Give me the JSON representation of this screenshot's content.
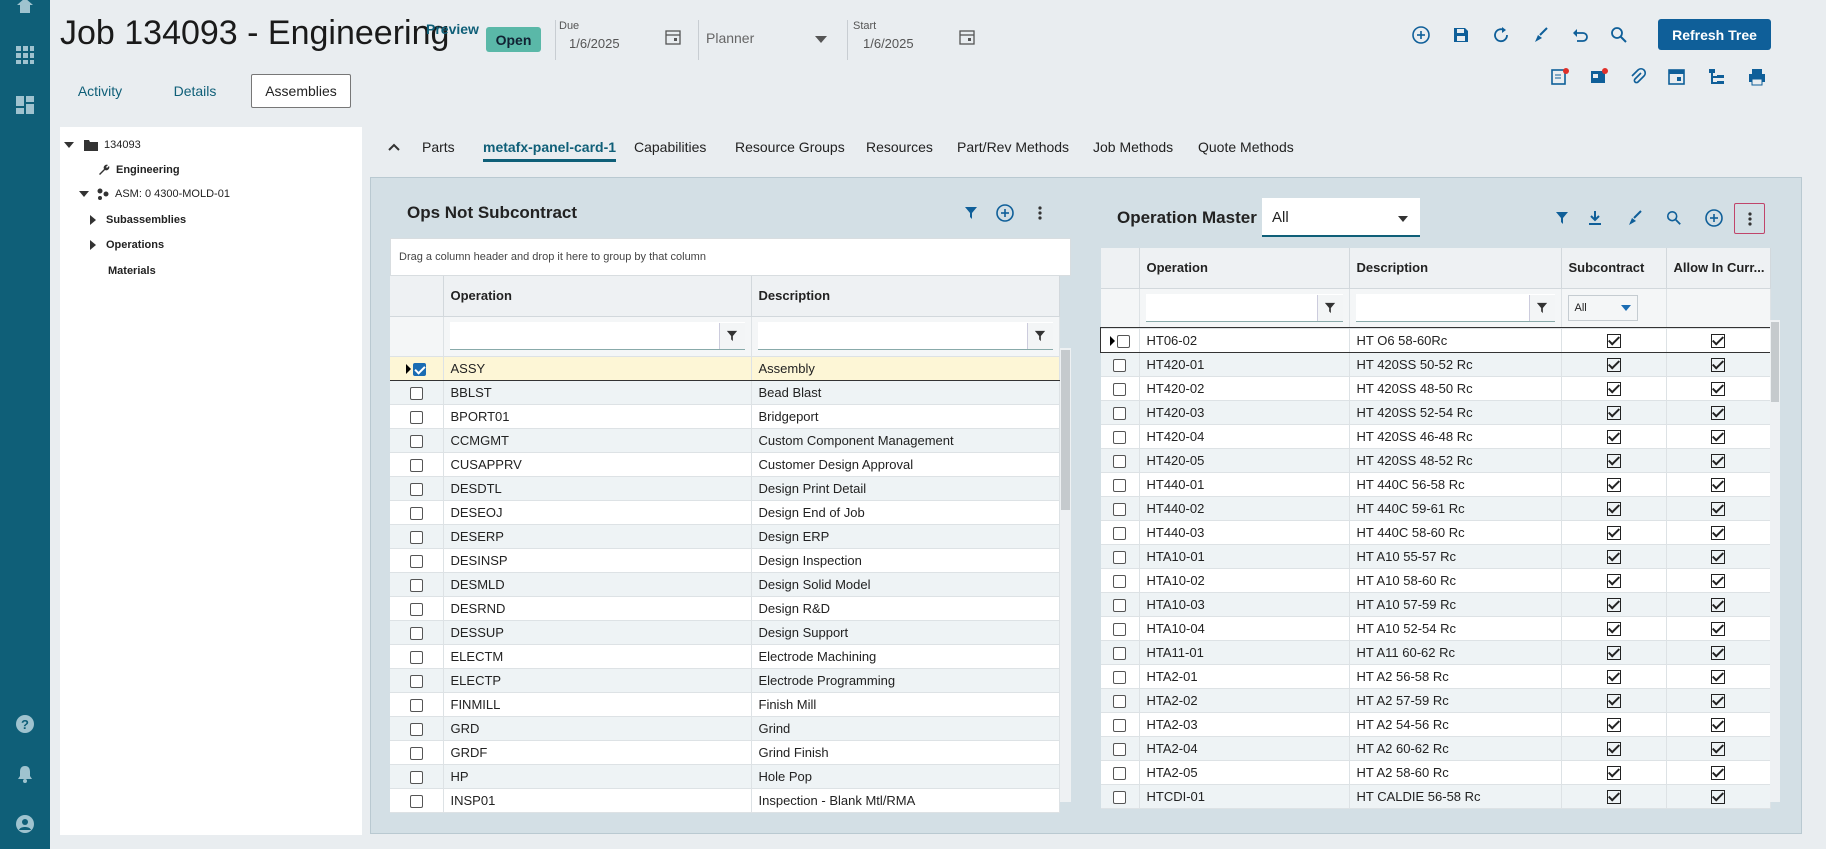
{
  "header": {
    "job_title": "Job 134093 - Engineering",
    "preview_label": "Preview",
    "status": "Open",
    "due_label": "Due",
    "due_value": "1/6/2025",
    "planner_placeholder": "Planner",
    "start_label": "Start",
    "start_value": "1/6/2025",
    "refresh_tree_label": "Refresh Tree"
  },
  "page_tabs": [
    "Activity",
    "Details",
    "Assemblies"
  ],
  "tree": {
    "root": "134093",
    "engineering": "Engineering",
    "assembly": "ASM: 0 4300-MOLD-01",
    "subassemblies": "Subassemblies",
    "operations": "Operations",
    "materials": "Materials"
  },
  "sub_tabs": [
    "Parts",
    "metafx-panel-card-1",
    "Capabilities",
    "Resource Groups",
    "Resources",
    "Part/Rev Methods",
    "Job Methods",
    "Quote Methods"
  ],
  "left_grid": {
    "title": "Ops Not Subcontract",
    "group_hint": "Drag a column header and drop it here to group by that column",
    "columns": [
      "Operation",
      "Description"
    ],
    "rows": [
      {
        "op": "ASSY",
        "desc": "Assembly",
        "checked": true
      },
      {
        "op": "BBLST",
        "desc": "Bead Blast",
        "checked": false
      },
      {
        "op": "BPORT01",
        "desc": "Bridgeport",
        "checked": false
      },
      {
        "op": "CCMGMT",
        "desc": "Custom Component Management",
        "checked": false
      },
      {
        "op": "CUSAPPRV",
        "desc": "Customer Design Approval",
        "checked": false
      },
      {
        "op": "DESDTL",
        "desc": "Design Print Detail",
        "checked": false
      },
      {
        "op": "DESEOJ",
        "desc": "Design End of Job",
        "checked": false
      },
      {
        "op": "DESERP",
        "desc": "Design ERP",
        "checked": false
      },
      {
        "op": "DESINSP",
        "desc": "Design Inspection",
        "checked": false
      },
      {
        "op": "DESMLD",
        "desc": "Design Solid Model",
        "checked": false
      },
      {
        "op": "DESRND",
        "desc": "Design R&D",
        "checked": false
      },
      {
        "op": "DESSUP",
        "desc": "Design Support",
        "checked": false
      },
      {
        "op": "ELECTM",
        "desc": "Electrode Machining",
        "checked": false
      },
      {
        "op": "ELECTP",
        "desc": "Electrode Programming",
        "checked": false
      },
      {
        "op": "FINMILL",
        "desc": "Finish Mill",
        "checked": false
      },
      {
        "op": "GRD",
        "desc": "Grind",
        "checked": false
      },
      {
        "op": "GRDF",
        "desc": "Grind Finish",
        "checked": false
      },
      {
        "op": "HP",
        "desc": "Hole Pop",
        "checked": false
      },
      {
        "op": "INSP01",
        "desc": "Inspection - Blank Mtl/RMA",
        "checked": false
      }
    ]
  },
  "right_grid": {
    "title": "Operation Master",
    "filter_value": "All",
    "columns": [
      "Operation",
      "Description",
      "Subcontract",
      "Allow In Curr..."
    ],
    "subcontract_filter": "All",
    "rows": [
      {
        "op": "HT06-02",
        "desc": "HT O6 58-60Rc"
      },
      {
        "op": "HT420-01",
        "desc": "HT 420SS 50-52 Rc"
      },
      {
        "op": "HT420-02",
        "desc": "HT 420SS 48-50 Rc"
      },
      {
        "op": "HT420-03",
        "desc": "HT 420SS 52-54 Rc"
      },
      {
        "op": "HT420-04",
        "desc": "HT 420SS 46-48 Rc"
      },
      {
        "op": "HT420-05",
        "desc": "HT 420SS 48-52 Rc"
      },
      {
        "op": "HT440-01",
        "desc": "HT 440C 56-58 Rc"
      },
      {
        "op": "HT440-02",
        "desc": "HT 440C 59-61 Rc"
      },
      {
        "op": "HT440-03",
        "desc": "HT 440C 58-60 Rc"
      },
      {
        "op": "HTA10-01",
        "desc": "HT A10 55-57 Rc"
      },
      {
        "op": "HTA10-02",
        "desc": "HT A10 58-60 Rc"
      },
      {
        "op": "HTA10-03",
        "desc": "HT A10 57-59 Rc"
      },
      {
        "op": "HTA10-04",
        "desc": "HT A10 52-54 Rc"
      },
      {
        "op": "HTA11-01",
        "desc": "HT A11 60-62 Rc"
      },
      {
        "op": "HTA2-01",
        "desc": "HT A2 56-58 Rc"
      },
      {
        "op": "HTA2-02",
        "desc": "HT A2 57-59 Rc"
      },
      {
        "op": "HTA2-03",
        "desc": "HT A2 54-56 Rc"
      },
      {
        "op": "HTA2-04",
        "desc": "HT A2 60-62 Rc"
      },
      {
        "op": "HTA2-05",
        "desc": "HT A2 58-60 Rc"
      },
      {
        "op": "HTCDI-01",
        "desc": "HT CALDIE 56-58 Rc"
      }
    ]
  },
  "colors": {
    "nav_bg": "#0f5f78",
    "accent": "#0f5f78",
    "button_blue": "#0f5f99",
    "status_green": "#5ab8a8",
    "card_bg": "#d3dfe5"
  }
}
